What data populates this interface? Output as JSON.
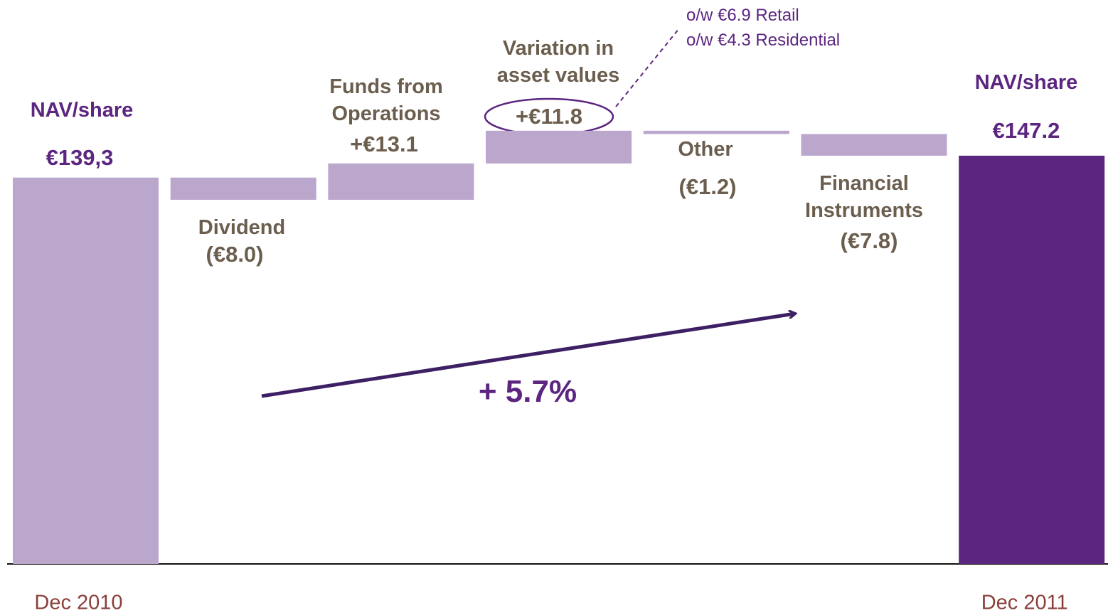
{
  "chart_data": {
    "type": "waterfall",
    "categories": [
      "NAV/share",
      "Dividend",
      "Funds from\nOperations",
      "Variation in\nasset values",
      "Other",
      "Financial\nInstruments",
      "NAV/share"
    ],
    "values": [
      139.3,
      -8.0,
      13.1,
      11.8,
      -1.2,
      -7.8,
      147.2
    ],
    "value_labels": [
      "€139,3",
      "(€8.0)",
      "+€13.1",
      "+€11.8",
      "(€1.2)",
      "(€7.8)",
      "€147.2"
    ],
    "totals": [
      0,
      6
    ],
    "colors": [
      "#bba6cc",
      "#bba6cc",
      "#bba6cc",
      "#bba6cc",
      "#bba6cc",
      "#bba6cc",
      "#5b2580"
    ],
    "periods": [
      "Dec 2010",
      null,
      null,
      null,
      null,
      null,
      "Dec 2011"
    ],
    "ylim": [
      0,
      200
    ],
    "annotation": "+ 5.7%",
    "note": [
      "o/w €6.9 Retail",
      "o/w €4.3 Residential"
    ]
  }
}
